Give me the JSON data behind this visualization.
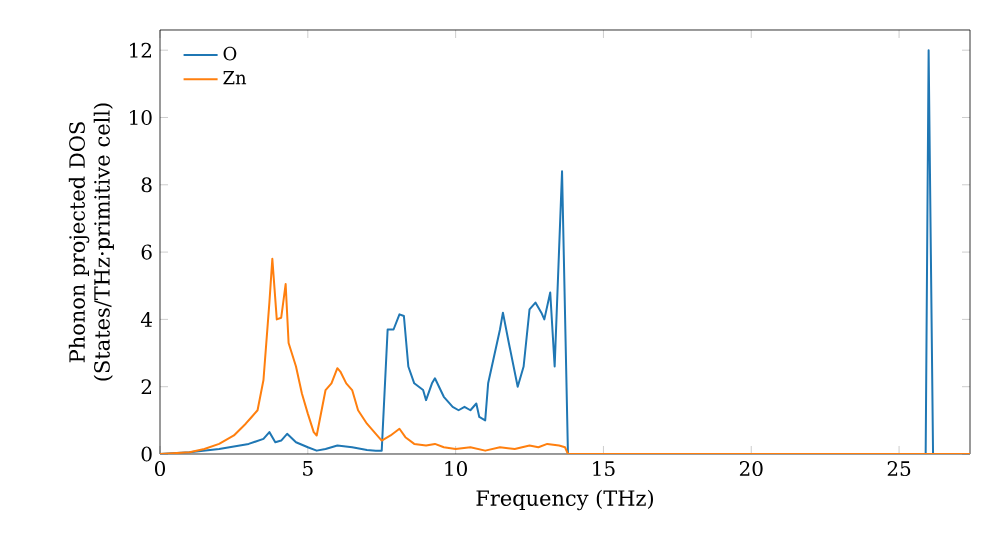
{
  "chart_data": {
    "type": "line",
    "xlabel": "Frequency (THz)",
    "ylabel": "Phonon projected DOS (States/THz·primitive cell)",
    "xlim": [
      0,
      27.4
    ],
    "ylim": [
      0,
      12.6
    ],
    "xticks": [
      0,
      5,
      10,
      15,
      20,
      25
    ],
    "yticks": [
      0,
      2,
      4,
      6,
      8,
      10,
      12
    ],
    "grid": false,
    "legend": "top left",
    "marker": "none",
    "line_style": "solid",
    "series": [
      {
        "name": "O",
        "color": "#1f77b4",
        "x": [
          0,
          1,
          2,
          3,
          3.5,
          3.7,
          3.9,
          4.1,
          4.3,
          4.6,
          5,
          5.3,
          5.6,
          6,
          6.5,
          7,
          7.3,
          7.5,
          7.7,
          7.9,
          8.1,
          8.25,
          8.4,
          8.6,
          8.9,
          9,
          9.2,
          9.3,
          9.6,
          9.9,
          10.1,
          10.3,
          10.5,
          10.7,
          10.8,
          11,
          11.1,
          11.5,
          11.6,
          11.8,
          12.1,
          12.3,
          12.5,
          12.7,
          12.9,
          13.0,
          13.2,
          13.35,
          13.6,
          13.8,
          25.9,
          26.0,
          26.15
        ],
        "values": [
          0,
          0.05,
          0.15,
          0.3,
          0.45,
          0.65,
          0.35,
          0.4,
          0.6,
          0.35,
          0.2,
          0.1,
          0.15,
          0.25,
          0.2,
          0.12,
          0.1,
          0.1,
          3.7,
          3.7,
          4.15,
          4.1,
          2.6,
          2.1,
          1.9,
          1.6,
          2.1,
          2.25,
          1.7,
          1.4,
          1.3,
          1.4,
          1.3,
          1.5,
          1.1,
          1.0,
          2.1,
          3.7,
          4.2,
          3.3,
          2.0,
          2.6,
          4.3,
          4.5,
          4.2,
          4.0,
          4.8,
          2.6,
          8.4,
          0,
          0,
          12.0,
          0
        ]
      },
      {
        "name": "Zn",
        "color": "#ff7f0e",
        "x": [
          0,
          1,
          1.5,
          2,
          2.5,
          2.9,
          3.1,
          3.3,
          3.5,
          3.7,
          3.8,
          3.95,
          4.1,
          4.25,
          4.35,
          4.6,
          4.8,
          5.0,
          5.2,
          5.3,
          5.6,
          5.8,
          6.0,
          6.1,
          6.3,
          6.5,
          6.7,
          7.0,
          7.3,
          7.5,
          7.8,
          8.1,
          8.3,
          8.6,
          9,
          9.3,
          9.6,
          10,
          10.5,
          11,
          11.5,
          12,
          12.5,
          12.8,
          13.1,
          13.5,
          13.7,
          13.8,
          27.4
        ],
        "values": [
          0,
          0.05,
          0.15,
          0.3,
          0.55,
          0.9,
          1.1,
          1.3,
          2.2,
          4.5,
          5.8,
          4.0,
          4.05,
          5.05,
          3.3,
          2.6,
          1.8,
          1.2,
          0.65,
          0.55,
          1.9,
          2.1,
          2.55,
          2.45,
          2.1,
          1.9,
          1.3,
          0.9,
          0.6,
          0.4,
          0.55,
          0.75,
          0.5,
          0.3,
          0.25,
          0.3,
          0.2,
          0.15,
          0.2,
          0.1,
          0.2,
          0.15,
          0.25,
          0.2,
          0.3,
          0.25,
          0.2,
          0,
          0
        ]
      }
    ]
  }
}
